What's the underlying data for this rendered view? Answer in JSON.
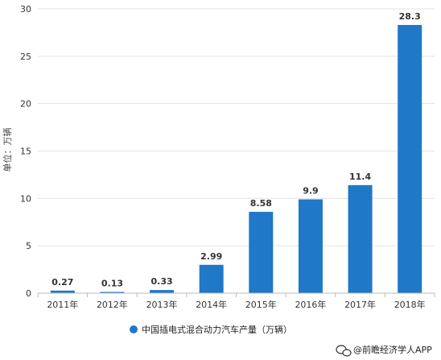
{
  "chart_data": {
    "type": "bar",
    "categories": [
      "2011年",
      "2012年",
      "2013年",
      "2014年",
      "2015年",
      "2016年",
      "2017年",
      "2018年"
    ],
    "series": [
      {
        "name": "中国插电式混合动力汽车产量（万辆）",
        "values": [
          0.27,
          0.13,
          0.33,
          2.99,
          8.58,
          9.9,
          11.4,
          28.3
        ],
        "labels": [
          "0.27",
          "0.13",
          "0.33",
          "2.99",
          "8.58",
          "9.9",
          "11.4",
          "28.3"
        ]
      }
    ],
    "ylabel": "单位：万辆",
    "ylim": [
      0,
      30
    ],
    "yticks": [
      0,
      5,
      10,
      15,
      20,
      25,
      30
    ],
    "grid": true,
    "legend_position": "bottom-center",
    "bar_color": "#1f78c8"
  },
  "credit": "@前瞻经济学人APP",
  "credit_icon": "wechat-logo"
}
